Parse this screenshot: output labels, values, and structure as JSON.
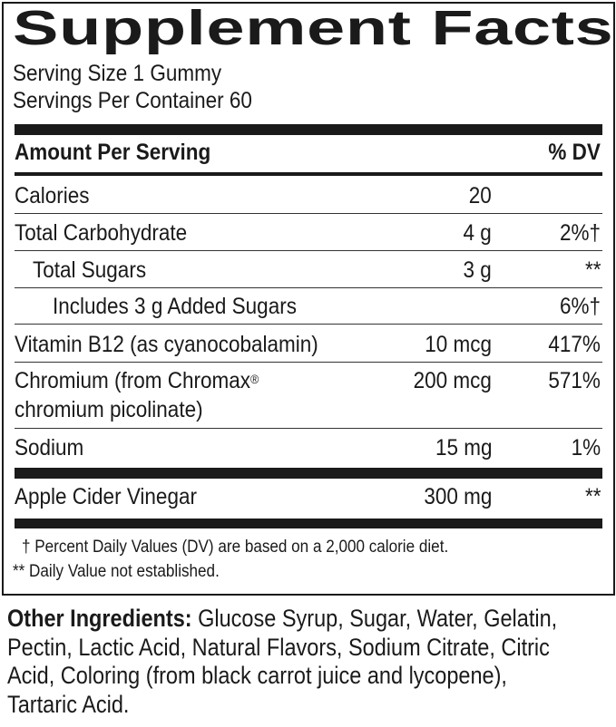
{
  "title": "Supplement Facts",
  "serving_size": "Serving Size 1 Gummy",
  "servings_per_container": "Servings Per Container 60",
  "header": {
    "amount": "Amount Per Serving",
    "dv": "% DV"
  },
  "rows": [
    {
      "name": "Calories",
      "amount": "20",
      "dv": ""
    },
    {
      "name": "Total Carbohydrate",
      "amount": "4 g",
      "dv": "2%†"
    },
    {
      "name": "Total Sugars",
      "amount": "3 g",
      "dv": "**"
    },
    {
      "name": "Includes 3 g Added Sugars",
      "amount": "",
      "dv": "6%†"
    },
    {
      "name": "Vitamin B12 (as cyanocobalamin)",
      "amount": "10 mcg",
      "dv": "417%"
    },
    {
      "name": "Chromium (from Chromax",
      "name_sup": "®",
      "name_line2": "chromium picolinate)",
      "amount": "200 mcg",
      "dv": "571%"
    },
    {
      "name": "Sodium",
      "amount": "15 mg",
      "dv": "1%"
    },
    {
      "name": "Apple Cider Vinegar",
      "amount": "300 mg",
      "dv": "**"
    }
  ],
  "footnotes": [
    "† Percent Daily Values (DV) are based on a 2,000 calorie diet.",
    "** Daily Value not established."
  ],
  "other_ingredients": {
    "label": "Other Ingredients:",
    "text": " Glucose Syrup, Sugar, Water, Gelatin, Pectin, Lactic Acid, Natural Flavors, Sodium Citrate, Citric Acid, Coloring (from black carrot juice and lycopene), Tartaric Acid."
  }
}
